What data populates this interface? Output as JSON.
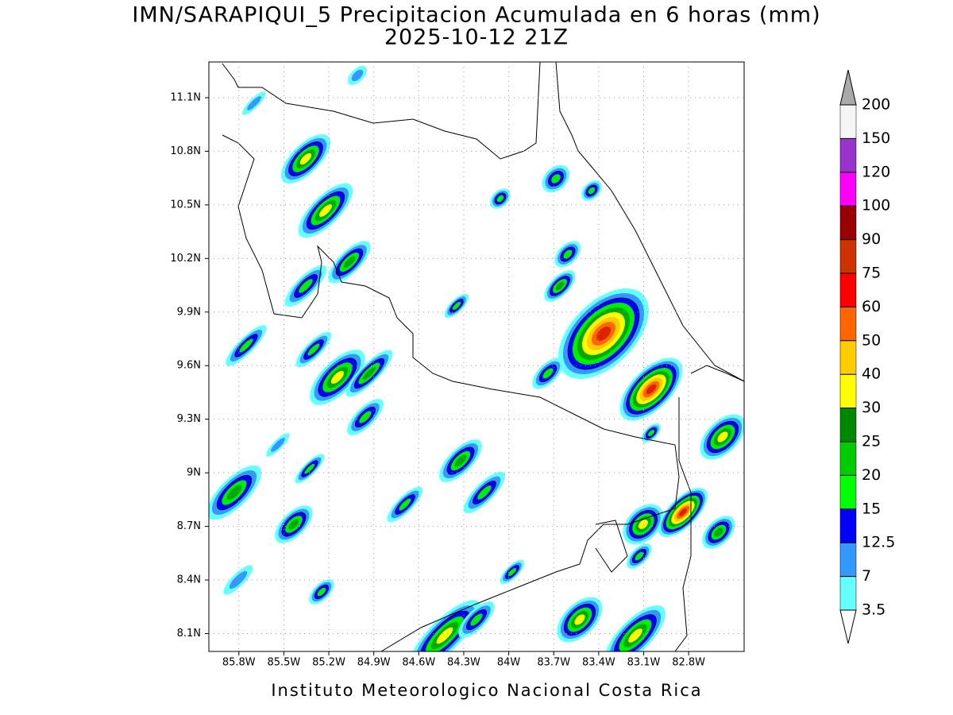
{
  "title": "IMN/SARAPIQUI_5 Precipitacion Acumulada en 6 horas (mm)",
  "subtitle": "2025-10-12 21Z",
  "footer": "Instituto Meteorologico Nacional Costa Rica",
  "map": {
    "xlim": [
      -86,
      -82.43
    ],
    "ylim": [
      8,
      11.3
    ],
    "grid": true,
    "xticks": [
      {
        "value": -85.8,
        "label": "85.8W"
      },
      {
        "value": -85.5,
        "label": "85.5W"
      },
      {
        "value": -85.2,
        "label": "85.2W"
      },
      {
        "value": -84.9,
        "label": "84.9W"
      },
      {
        "value": -84.6,
        "label": "84.6W"
      },
      {
        "value": -84.3,
        "label": "84.3W"
      },
      {
        "value": -84,
        "label": "84W"
      },
      {
        "value": -83.7,
        "label": "83.7W"
      },
      {
        "value": -83.4,
        "label": "83.4W"
      },
      {
        "value": -83.1,
        "label": "83.1W"
      },
      {
        "value": -82.8,
        "label": "82.8W"
      }
    ],
    "yticks": [
      {
        "value": 8.1,
        "label": "8.1N"
      },
      {
        "value": 8.4,
        "label": "8.4N"
      },
      {
        "value": 8.7,
        "label": "8.7N"
      },
      {
        "value": 9,
        "label": "9N"
      },
      {
        "value": 9.3,
        "label": "9.3N"
      },
      {
        "value": 9.6,
        "label": "9.6N"
      },
      {
        "value": 9.9,
        "label": "9.9N"
      },
      {
        "value": 10.2,
        "label": "10.2N"
      },
      {
        "value": 10.5,
        "label": "10.5N"
      },
      {
        "value": 10.8,
        "label": "10.8N"
      },
      {
        "value": 11.1,
        "label": "11.1N"
      }
    ]
  },
  "colorbar": {
    "levels": [
      3.5,
      7,
      12.5,
      15,
      20,
      25,
      30,
      40,
      50,
      60,
      75,
      90,
      100,
      120,
      150,
      200
    ],
    "colors": [
      "#ffffff",
      "#66ffff",
      "#3399ff",
      "#0000ff",
      "#00ff00",
      "#00cc00",
      "#008800",
      "#ffff00",
      "#ffcc00",
      "#ff6600",
      "#ff0000",
      "#cc3300",
      "#990000",
      "#ff00ff",
      "#9933cc",
      "#f5f5f5",
      "#aaaaaa"
    ]
  }
}
